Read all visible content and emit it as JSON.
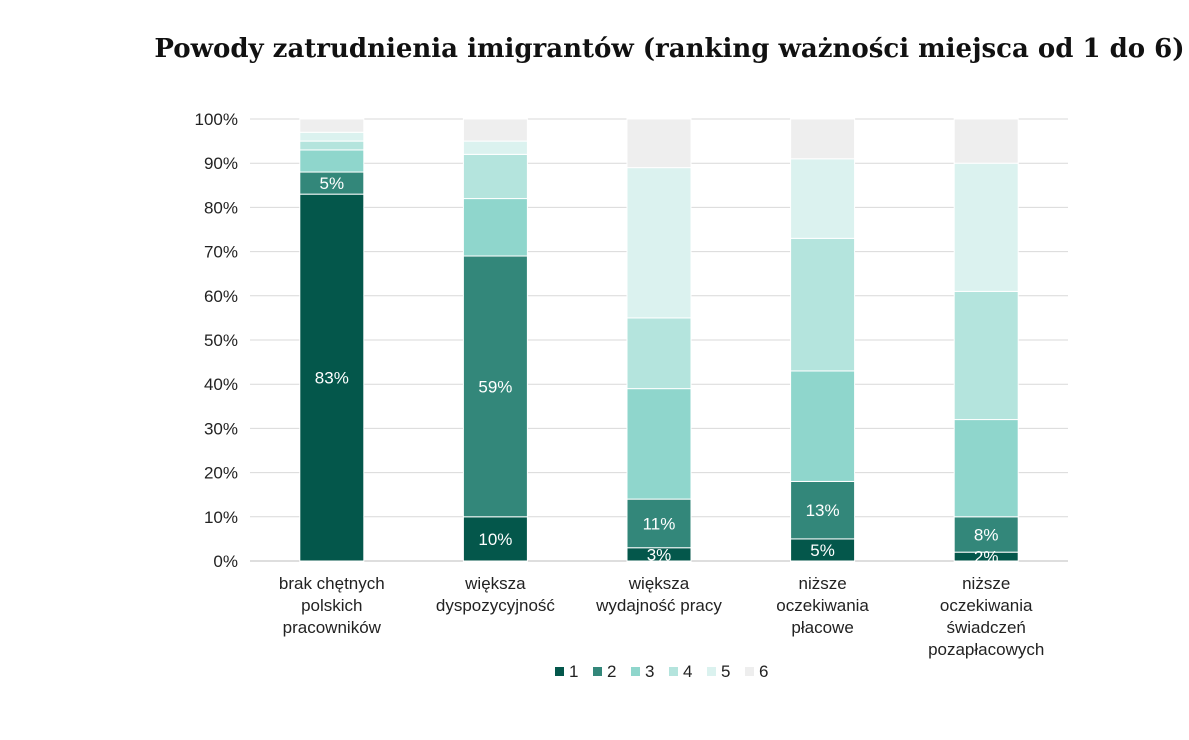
{
  "chart_data": {
    "type": "bar",
    "stacked": true,
    "title": "Powody zatrudnienia imigrantów (ranking ważności miejsca od 1 do 6)",
    "xlabel": "",
    "ylabel": "",
    "ylim": [
      0,
      100
    ],
    "yticks": [
      "0%",
      "10%",
      "20%",
      "30%",
      "40%",
      "50%",
      "60%",
      "70%",
      "80%",
      "90%",
      "100%"
    ],
    "grid": true,
    "legend_position": "bottom",
    "categories": [
      [
        "brak chętnych",
        "polskich",
        "pracowników"
      ],
      [
        "większa",
        "dyspozycyjność"
      ],
      [
        "większa",
        "wydajność pracy"
      ],
      [
        "niższe",
        "oczekiwania",
        "płacowe"
      ],
      [
        "niższe",
        "oczekiwania",
        "świadczeń",
        "pozapłacowych"
      ]
    ],
    "series": [
      {
        "name": "1",
        "color": "#04574b",
        "values": [
          83,
          10,
          3,
          5,
          2
        ],
        "labels": [
          "83%",
          "10%",
          "3%",
          "5%",
          "2%"
        ],
        "label_color": "#ffffff"
      },
      {
        "name": "2",
        "color": "#33877a",
        "values": [
          5,
          59,
          11,
          13,
          8
        ],
        "labels": [
          "5%",
          "59%",
          "11%",
          "13%",
          "8%"
        ],
        "label_color": "#ffffff"
      },
      {
        "name": "3",
        "color": "#8fd6cc",
        "values": [
          5,
          13,
          25,
          25,
          22
        ],
        "labels": [
          "",
          "",
          "",
          "",
          ""
        ],
        "label_color": "#222222"
      },
      {
        "name": "4",
        "color": "#b4e4dd",
        "values": [
          2,
          10,
          16,
          30,
          29
        ],
        "labels": [
          "",
          "",
          "",
          "",
          ""
        ],
        "label_color": "#222222"
      },
      {
        "name": "5",
        "color": "#dbf2ef",
        "values": [
          2,
          3,
          34,
          18,
          29
        ],
        "labels": [
          "",
          "",
          "",
          "",
          ""
        ],
        "label_color": "#222222"
      },
      {
        "name": "6",
        "color": "#eeeeee",
        "values": [
          3,
          5,
          11,
          9,
          10
        ],
        "labels": [
          "",
          "",
          "",
          "",
          ""
        ],
        "label_color": "#222222"
      }
    ]
  }
}
